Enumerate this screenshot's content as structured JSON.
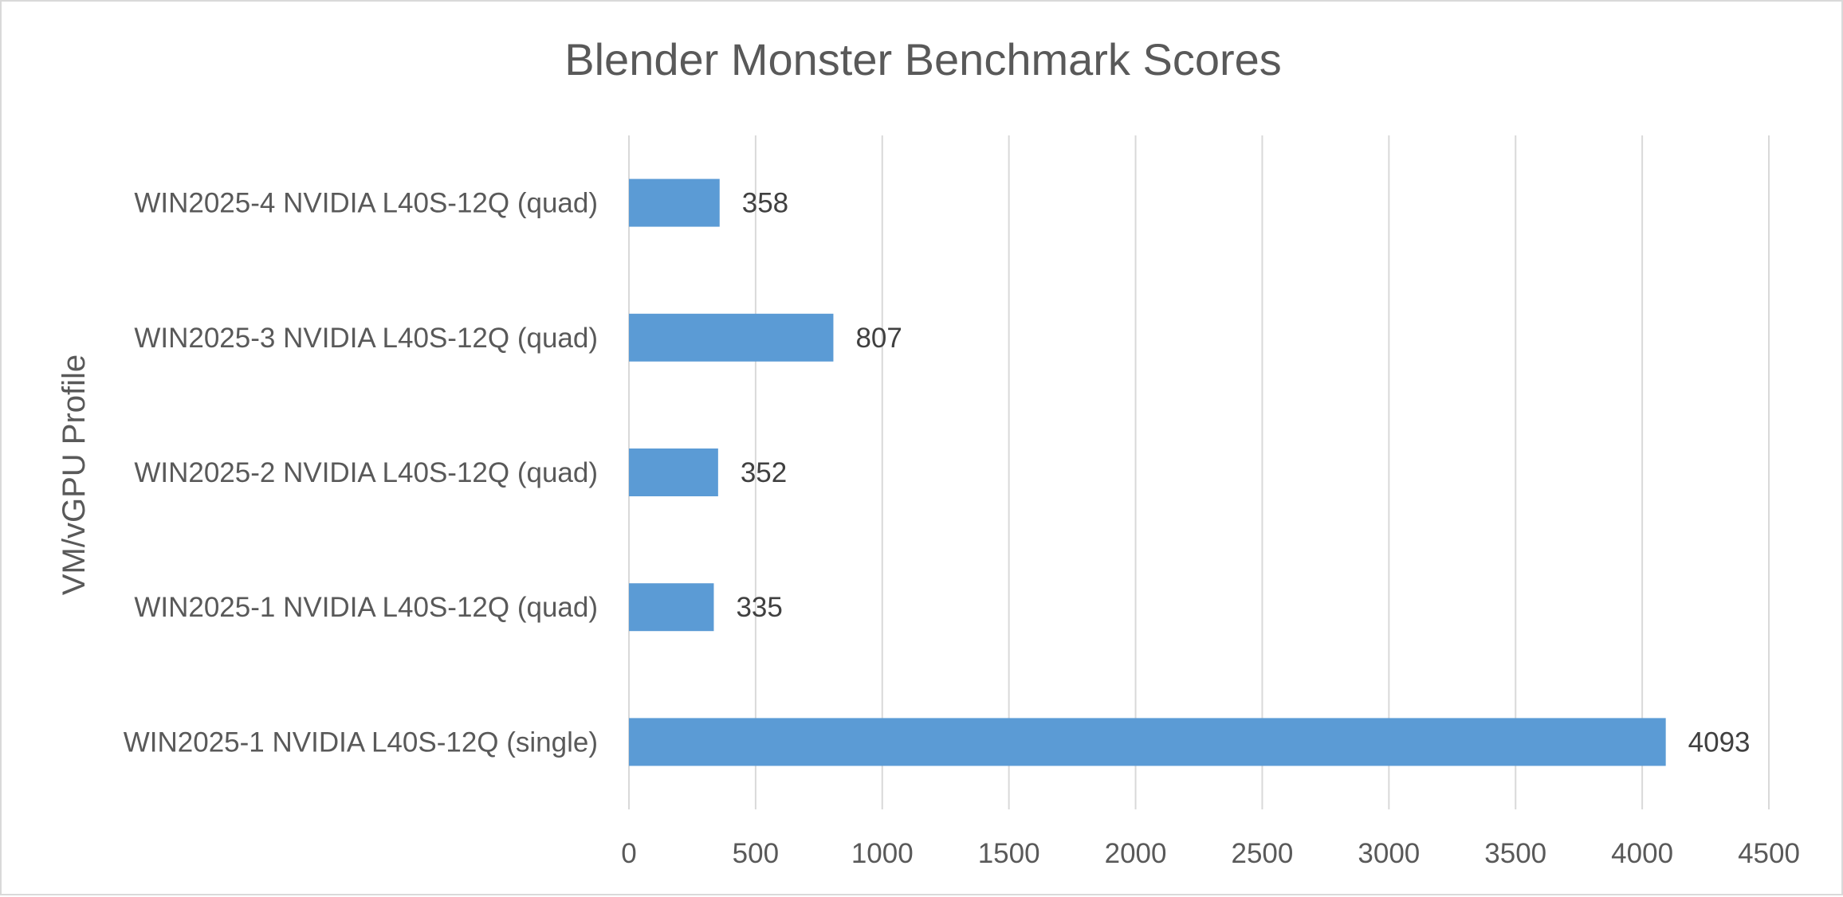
{
  "chart_data": {
    "type": "bar",
    "orientation": "horizontal",
    "title": "Blender Monster Benchmark Scores",
    "xlabel": "",
    "ylabel": "VM/vGPU Profile",
    "categories": [
      "WIN2025-4 NVIDIA L40S-12Q (quad)",
      "WIN2025-3 NVIDIA L40S-12Q (quad)",
      "WIN2025-2 NVIDIA L40S-12Q (quad)",
      "WIN2025-1 NVIDIA L40S-12Q (quad)",
      "WIN2025-1 NVIDIA L40S-12Q (single)"
    ],
    "values": [
      358,
      807,
      352,
      335,
      4093
    ],
    "xlim": [
      0,
      4500
    ],
    "xticks": [
      0,
      500,
      1000,
      1500,
      2000,
      2500,
      3000,
      3500,
      4000,
      4500
    ],
    "grid": true,
    "legend": "none",
    "bar_color": "#5b9bd5"
  }
}
